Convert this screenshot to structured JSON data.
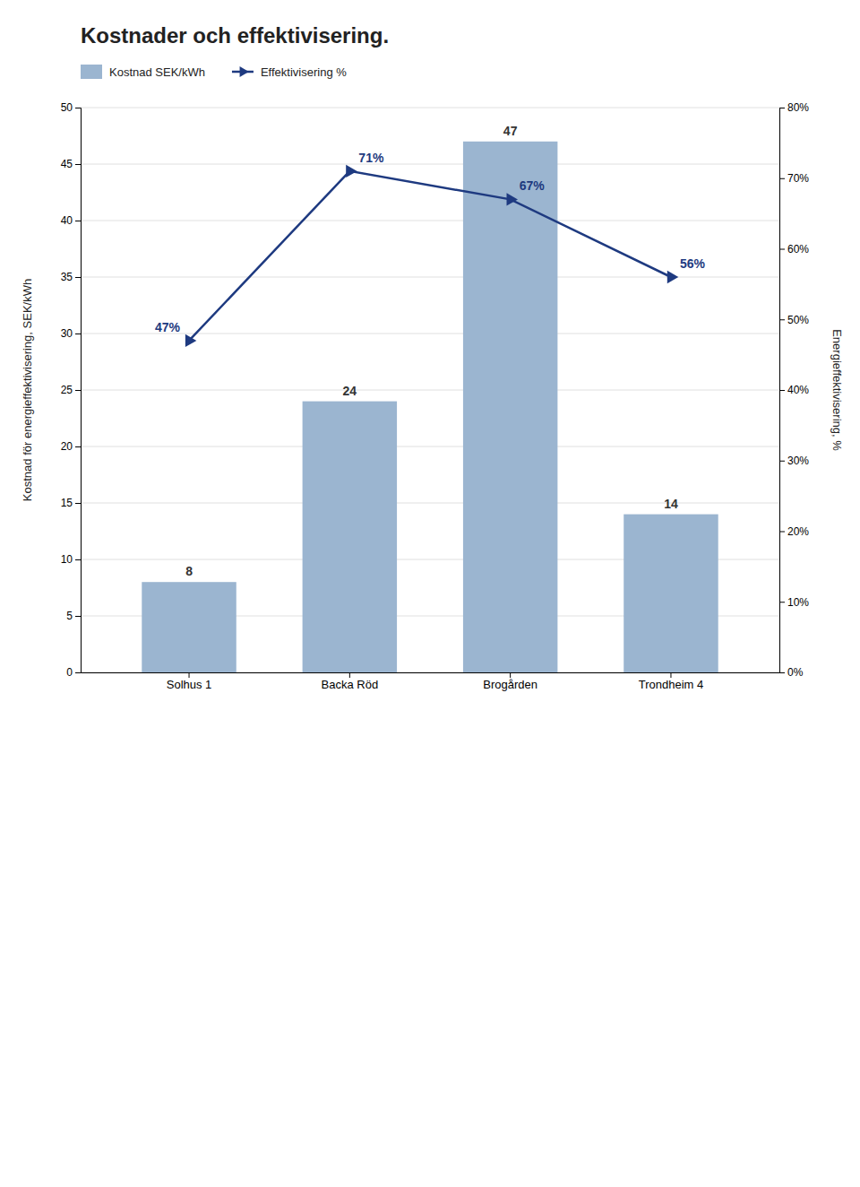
{
  "chart_data": {
    "type": "bar",
    "title": "Kostnader och effektivisering.",
    "categories": [
      "Solhus 1",
      "Backa Röd",
      "Brogården",
      "Trondheim 4"
    ],
    "series": [
      {
        "name": "Kostnad SEK/kWh",
        "type": "bar",
        "color": "#9BB5D0",
        "values": [
          8,
          24,
          47,
          14
        ]
      },
      {
        "name": "Effektivisering %",
        "type": "line",
        "color": "#1E3A80",
        "axis": "y2",
        "marker": "triangle-right",
        "values": [
          47,
          71,
          67,
          56
        ],
        "value_labels": [
          "47%",
          "71%",
          "67%",
          "56%"
        ]
      }
    ],
    "ylabel": "Kostnad för energieffektivisering, SEK/kWh",
    "y2label": "Energieffektivisering, %",
    "ylim": [
      0,
      50
    ],
    "yticks": [
      0,
      5,
      10,
      15,
      20,
      25,
      30,
      35,
      40,
      45,
      50
    ],
    "y2lim": [
      0,
      80
    ],
    "y2ticks": [
      {
        "value": 0,
        "label": "0%"
      },
      {
        "value": 10,
        "label": "10%"
      },
      {
        "value": 20,
        "label": "20%"
      },
      {
        "value": 30,
        "label": "30%"
      },
      {
        "value": 40,
        "label": "40%"
      },
      {
        "value": 50,
        "label": "50%"
      },
      {
        "value": 60,
        "label": "60%"
      },
      {
        "value": 70,
        "label": "70%"
      },
      {
        "value": 80,
        "label": "80%"
      }
    ],
    "grid": true,
    "legend": "top",
    "data_labels": true
  }
}
